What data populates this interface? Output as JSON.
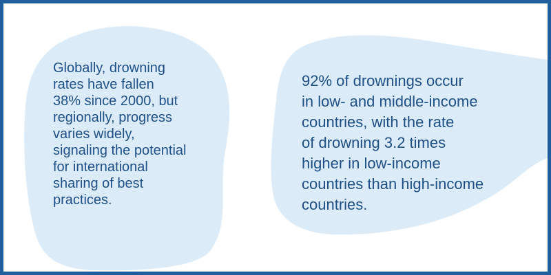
{
  "colors": {
    "frame_border": "#1f5d9c",
    "blob_fill": "#dcebf8",
    "text": "#1e4f86",
    "background": "#ffffff"
  },
  "left_fact": {
    "lines": [
      "Globally, drowning",
      "rates have fallen",
      "38% since 2000, but",
      "regionally, progress",
      "varies widely,",
      "signaling the potential",
      "for international",
      "sharing of best",
      "practices."
    ]
  },
  "right_fact": {
    "lines": [
      "92% of drownings occur",
      "in low- and middle-income",
      "countries, with the rate",
      "of drowning 3.2 times",
      "higher in low-income",
      "countries than high-income",
      "countries."
    ]
  }
}
